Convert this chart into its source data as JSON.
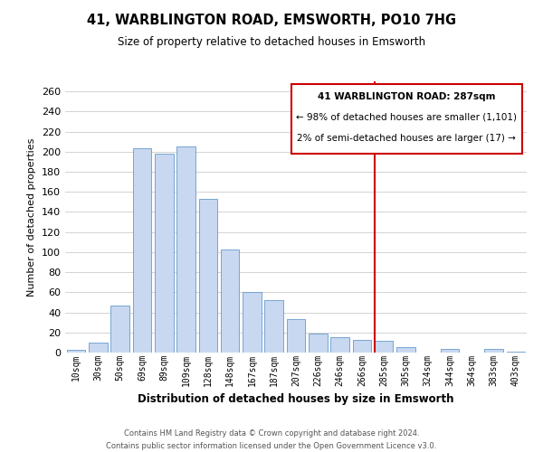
{
  "title": "41, WARBLINGTON ROAD, EMSWORTH, PO10 7HG",
  "subtitle": "Size of property relative to detached houses in Emsworth",
  "xlabel": "Distribution of detached houses by size in Emsworth",
  "ylabel": "Number of detached properties",
  "bar_labels": [
    "10sqm",
    "30sqm",
    "50sqm",
    "69sqm",
    "89sqm",
    "109sqm",
    "128sqm",
    "148sqm",
    "167sqm",
    "187sqm",
    "207sqm",
    "226sqm",
    "246sqm",
    "266sqm",
    "285sqm",
    "305sqm",
    "324sqm",
    "344sqm",
    "364sqm",
    "383sqm",
    "403sqm"
  ],
  "bar_values": [
    3,
    10,
    47,
    203,
    198,
    205,
    153,
    103,
    60,
    52,
    33,
    19,
    15,
    13,
    12,
    5,
    0,
    4,
    0,
    4,
    1
  ],
  "bar_color": "#c8d8f0",
  "bar_edge_color": "#6699cc",
  "highlight_index": 14,
  "highlight_color": "#cc0000",
  "annotation_title": "41 WARBLINGTON ROAD: 287sqm",
  "annotation_line1": "← 98% of detached houses are smaller (1,101)",
  "annotation_line2": "2% of semi-detached houses are larger (17) →",
  "annotation_box_color": "#ffffff",
  "annotation_border_color": "#cc0000",
  "grid_color": "#cccccc",
  "background_color": "#ffffff",
  "footer_line1": "Contains HM Land Registry data © Crown copyright and database right 2024.",
  "footer_line2": "Contains public sector information licensed under the Open Government Licence v3.0.",
  "ylim": [
    0,
    270
  ],
  "yticks": [
    0,
    20,
    40,
    60,
    80,
    100,
    120,
    140,
    160,
    180,
    200,
    220,
    240,
    260
  ]
}
